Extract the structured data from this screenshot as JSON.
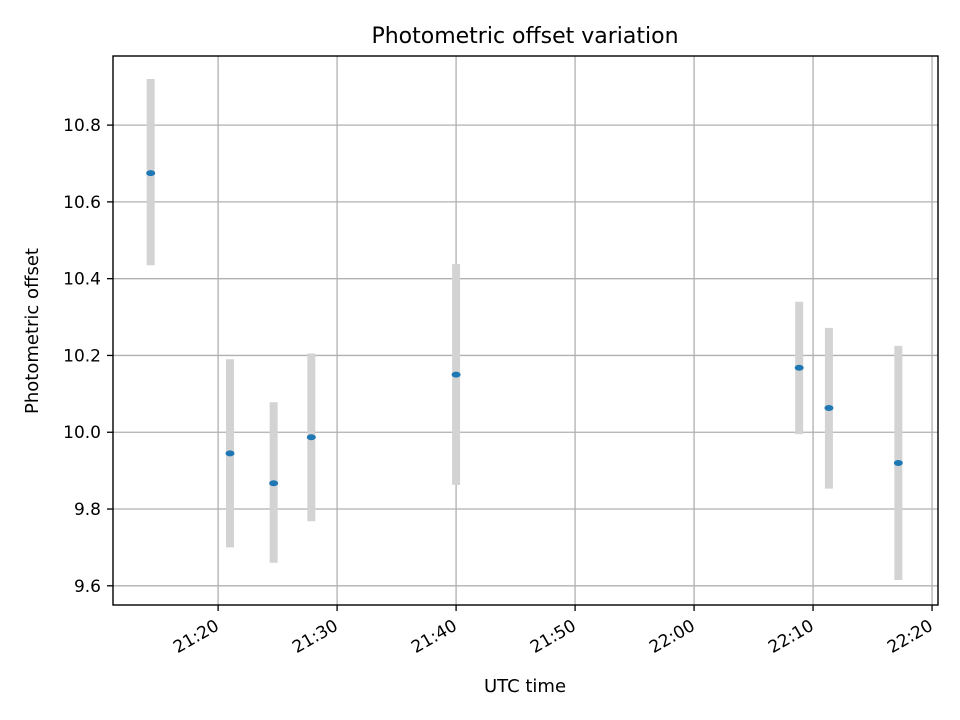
{
  "chart_data": {
    "type": "scatter",
    "title": "Photometric offset variation",
    "xlabel": "UTC time",
    "ylabel": "Photometric offset",
    "x_tick_labels": [
      "21:20",
      "21:30",
      "21:40",
      "21:50",
      "22:00",
      "22:10",
      "22:20"
    ],
    "y_tick_labels": [
      "9.6",
      "9.8",
      "10.0",
      "10.2",
      "10.4",
      "10.6",
      "10.8"
    ],
    "xlim": [
      "21:11:10",
      "22:20:30"
    ],
    "ylim": [
      9.55,
      10.98
    ],
    "grid": true,
    "colors": {
      "point": "#1f77b4",
      "errorbar": "#d3d3d3",
      "grid": "#b0b0b0"
    },
    "points": [
      {
        "time": "21:14:20",
        "value": 10.675,
        "err_low": 10.435,
        "err_high": 10.92
      },
      {
        "time": "21:21:00",
        "value": 9.945,
        "err_low": 9.7,
        "err_high": 10.19
      },
      {
        "time": "21:24:40",
        "value": 9.867,
        "err_low": 9.66,
        "err_high": 10.078
      },
      {
        "time": "21:27:50",
        "value": 9.987,
        "err_low": 9.768,
        "err_high": 10.205
      },
      {
        "time": "21:40:00",
        "value": 10.15,
        "err_low": 9.863,
        "err_high": 10.438
      },
      {
        "time": "22:08:50",
        "value": 10.168,
        "err_low": 9.995,
        "err_high": 10.34
      },
      {
        "time": "22:11:20",
        "value": 10.063,
        "err_low": 9.853,
        "err_high": 10.272
      },
      {
        "time": "22:17:10",
        "value": 9.92,
        "err_low": 9.615,
        "err_high": 10.225
      }
    ]
  }
}
